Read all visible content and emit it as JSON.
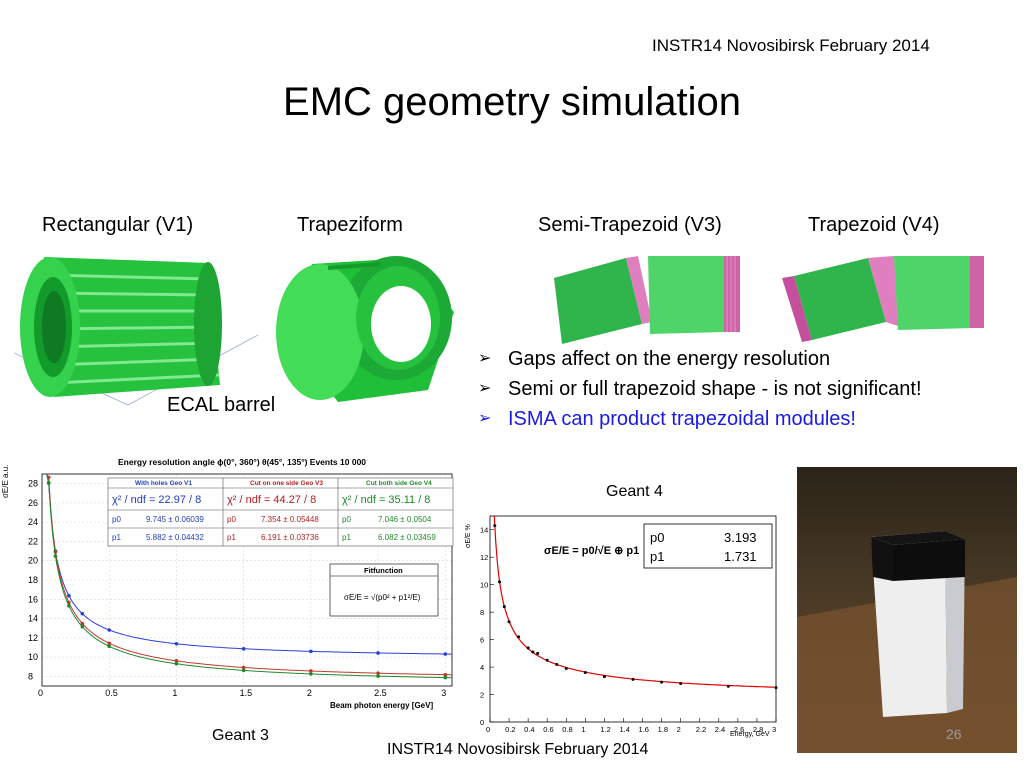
{
  "header": {
    "conference": "INSTR14 Novosibirsk February 2014"
  },
  "slide": {
    "title": "EMC geometry simulation",
    "page_number": "26"
  },
  "geometries": {
    "v1": "Rectangular (V1)",
    "trap": "Trapeziform",
    "v3": "Semi-Trapezoid (V3)",
    "v4": "Trapezoid (V4)",
    "barrel": "ECAL barrel"
  },
  "bullets": [
    "Gaps affect on the energy resolution",
    "Semi or full trapezoid shape  - is not significant!",
    "ISMA can product trapezoidal modules!"
  ],
  "colors": {
    "bullet3": "#1a1ae6",
    "module_green": "#22c742",
    "gap_pink": "#e07fc0"
  },
  "geant3": {
    "caption": "Geant 3",
    "title": "Energy resolution angle ϕ(0°, 360°) θ(45°, 135°) Events 10 000",
    "ylabel": "σE/E a.u.",
    "xlabel": "Beam photon energy [GeV]",
    "fitbox_title": "Fitfunction",
    "fitbox_formula": "σE/E = √(p0² + p1²/E)",
    "table": [
      {
        "head": "With holes Geo V1",
        "chi": "χ² / ndf = 22.97 / 8",
        "p0": "9.745 ± 0.06039",
        "p1": "5.882 ± 0.04432",
        "color": "#1f3fbf"
      },
      {
        "head": "Cut on one side Geo V3",
        "chi": "χ² / ndf = 44.27 / 8",
        "p0": "7.354 ± 0.05448",
        "p1": "6.191 ± 0.03736",
        "color": "#b52020"
      },
      {
        "head": "Cut both side Geo V4",
        "chi": "χ² / ndf = 35.11 / 8",
        "p0": "7.046 ± 0.0504",
        "p1": "6.082 ± 0.03459",
        "color": "#1f8a2a"
      }
    ],
    "p0_label": "p0",
    "p1_label": "p1"
  },
  "geant4": {
    "caption": "Geant 4",
    "ylabel": "σE/E %",
    "xlabel": "Energy, GeV",
    "formula": "σE/E = p0/√E ⊕ p1",
    "stats": [
      {
        "name": "p0",
        "value": "3.193"
      },
      {
        "name": "p1",
        "value": "1.731"
      }
    ]
  },
  "footer": {
    "conference": "INSTR14 Novosibirsk February 2014"
  },
  "chart_data": [
    {
      "type": "line",
      "title": "Energy resolution angle ϕ(0°, 360°) θ(45°, 135°) Events 10 000",
      "xlabel": "Beam photon energy [GeV]",
      "ylabel": "σE/E a.u.",
      "xlim": [
        0,
        3.05
      ],
      "ylim": [
        7,
        29
      ],
      "xticks": [
        0,
        0.5,
        1,
        1.5,
        2,
        2.5,
        3
      ],
      "yticks": [
        8,
        10,
        12,
        14,
        16,
        18,
        20,
        22,
        24,
        26,
        28
      ],
      "grid": true,
      "series": [
        {
          "name": "With holes Geo V1",
          "color": "#2b3fd9",
          "p0": 9.745,
          "p1": 5.882,
          "x": [
            0.05,
            0.1,
            0.2,
            0.3,
            0.5,
            1,
            1.5,
            2,
            2.5,
            3
          ]
        },
        {
          "name": "Cut on one side Geo V3",
          "color": "#c0392b",
          "p0": 7.354,
          "p1": 6.191,
          "x": [
            0.05,
            0.1,
            0.2,
            0.3,
            0.5,
            1,
            1.5,
            2,
            2.5,
            3
          ]
        },
        {
          "name": "Cut both side Geo V4",
          "color": "#1e8a2e",
          "p0": 7.046,
          "p1": 6.082,
          "x": [
            0.05,
            0.1,
            0.2,
            0.3,
            0.5,
            1,
            1.5,
            2,
            2.5,
            3
          ]
        }
      ]
    },
    {
      "type": "scatter",
      "xlabel": "Energy, GeV",
      "ylabel": "σE/E %",
      "xlim": [
        0,
        3
      ],
      "ylim": [
        0,
        15
      ],
      "xticks": [
        0,
        0.2,
        0.4,
        0.6,
        0.8,
        1,
        1.2,
        1.4,
        1.6,
        1.8,
        2,
        2.2,
        2.4,
        2.6,
        2.8,
        3
      ],
      "yticks": [
        0,
        2,
        4,
        6,
        8,
        10,
        12,
        14
      ],
      "grid": false,
      "fit": {
        "p0": 3.193,
        "p1": 1.731,
        "color": "#e00000"
      },
      "points": {
        "x": [
          0.05,
          0.1,
          0.15,
          0.2,
          0.3,
          0.4,
          0.45,
          0.5,
          0.6,
          0.7,
          0.8,
          1,
          1.2,
          1.5,
          1.8,
          2,
          2.5,
          3
        ],
        "y": [
          14.3,
          10.2,
          8.4,
          7.3,
          6.2,
          5.4,
          5.1,
          5.0,
          4.5,
          4.2,
          3.9,
          3.6,
          3.3,
          3.1,
          2.9,
          2.8,
          2.6,
          2.5
        ]
      }
    }
  ]
}
